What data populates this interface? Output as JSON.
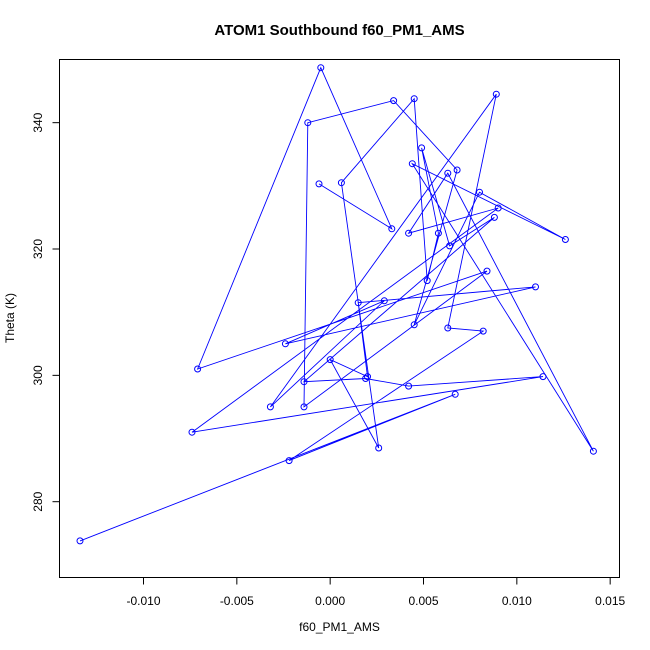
{
  "chart_data": {
    "type": "scatter",
    "title": "ATOM1 Southbound f60_PM1_AMS",
    "xlabel": "f60_PM1_AMS",
    "ylabel": "Theta (K)",
    "xlim": [
      -0.0145,
      0.0155
    ],
    "ylim": [
      268,
      350
    ],
    "xticks": [
      -0.01,
      -0.005,
      0.0,
      0.005,
      0.01,
      0.015
    ],
    "xtick_labels": [
      "-0.010",
      "-0.005",
      "0.000",
      "0.005",
      "0.010",
      "0.015"
    ],
    "yticks": [
      280,
      300,
      320,
      340
    ],
    "ytick_labels": [
      "280",
      "300",
      "320",
      "340"
    ],
    "connected": true,
    "marker": "open-circle",
    "grid": false,
    "color": "#0000ff",
    "series": [
      {
        "x": [
          -0.0134,
          0.0067,
          -0.0022,
          0.0082,
          0.0063,
          0.0089,
          -0.0032,
          0.0029,
          -0.0024,
          0.011,
          0.0015,
          0.002,
          0.0,
          0.0026,
          0.0006,
          0.0045,
          0.0052,
          0.0058,
          0.0049,
          0.0064,
          0.0088,
          -0.0014,
          0.0019,
          0.0042,
          0.0114,
          -0.0074,
          0.009,
          0.0042,
          0.0063,
          0.0141,
          0.0044,
          0.0126,
          0.008,
          0.0045,
          0.0068,
          0.0034,
          -0.0012,
          -0.0014,
          0.0084,
          -0.0071,
          -0.0005,
          0.0033,
          -0.0006
        ],
        "y": [
          273.8,
          297.0,
          286.5,
          307.0,
          307.5,
          344.5,
          295.0,
          311.8,
          305.0,
          314.0,
          311.5,
          299.8,
          302.5,
          288.5,
          330.5,
          343.8,
          315.0,
          322.5,
          336.0,
          320.5,
          325.0,
          299.0,
          299.5,
          298.3,
          299.8,
          291.0,
          326.5,
          322.5,
          332.0,
          288.0,
          333.5,
          321.5,
          329.0,
          308.0,
          332.5,
          343.5,
          340.0,
          295.0,
          316.5,
          301.0,
          348.7,
          323.2,
          330.3
        ]
      }
    ]
  }
}
